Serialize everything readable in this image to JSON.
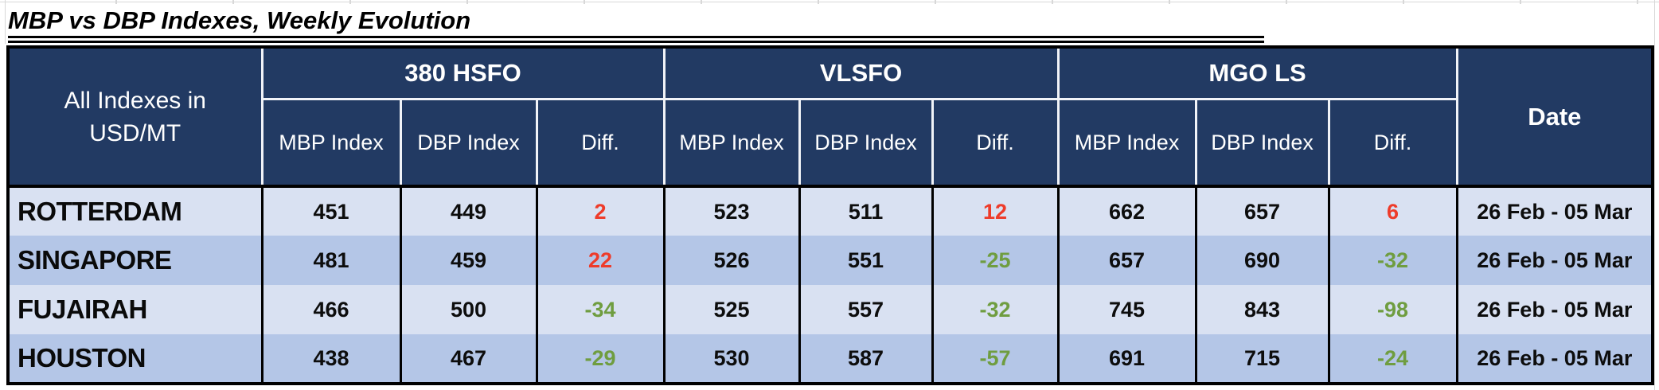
{
  "title": "MBP vs DBP Indexes, Weekly Evolution",
  "colors": {
    "header_bg": "#223A63",
    "header_sep": "#F1F3F8",
    "row_light": "#D9E1F2",
    "row_striped": "#B4C6E7",
    "diff_pos": "#EE3B2A",
    "diff_neg": "#6F9D40",
    "gridline": "#D8D8D8"
  },
  "table": {
    "corner_label_line1": "All Indexes in",
    "corner_label_line2": "USD/MT",
    "groups": [
      {
        "label": "380 HSFO"
      },
      {
        "label": "VLSFO"
      },
      {
        "label": "MGO LS"
      }
    ],
    "sub_headers": [
      "MBP Index",
      "DBP Index",
      "Diff."
    ],
    "date_header": "Date",
    "rows": [
      {
        "port": "ROTTERDAM",
        "values": [
          "451",
          "449",
          "2",
          "523",
          "511",
          "12",
          "662",
          "657",
          "6"
        ],
        "date": "26 Feb - 05 Mar"
      },
      {
        "port": "SINGAPORE",
        "values": [
          "481",
          "459",
          "22",
          "526",
          "551",
          "-25",
          "657",
          "690",
          "-32"
        ],
        "date": "26 Feb - 05 Mar"
      },
      {
        "port": "FUJAIRAH",
        "values": [
          "466",
          "500",
          "-34",
          "525",
          "557",
          "-32",
          "745",
          "843",
          "-98"
        ],
        "date": "26 Feb - 05 Mar"
      },
      {
        "port": "HOUSTON",
        "values": [
          "438",
          "467",
          "-29",
          "530",
          "587",
          "-57",
          "691",
          "715",
          "-24"
        ],
        "date": "26 Feb - 05 Mar"
      }
    ]
  }
}
